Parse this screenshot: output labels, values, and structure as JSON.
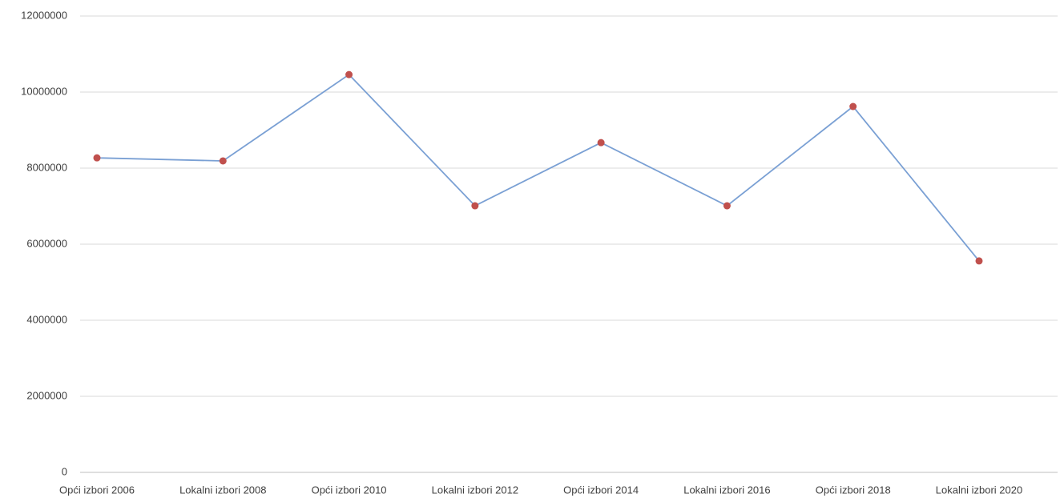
{
  "chart_data": {
    "type": "line",
    "categories": [
      "Opći izbori 2006",
      "Lokalni izbori 2008",
      "Opći izbori 2010",
      "Lokalni izbori 2012",
      "Opći izbori 2014",
      "Lokalni izbori 2016",
      "Opći izbori 2018",
      "Lokalni izbori 2020"
    ],
    "series": [
      {
        "color": "#7aa0d4",
        "marker_color": "#c0504d",
        "values": [
          8270000,
          8190000,
          10460000,
          7010000,
          8670000,
          7010000,
          9620000,
          5560000
        ]
      }
    ],
    "ylim": [
      0,
      12000000
    ],
    "yticks": [
      0,
      2000000,
      4000000,
      6000000,
      8000000,
      10000000,
      12000000
    ],
    "grid": true
  }
}
